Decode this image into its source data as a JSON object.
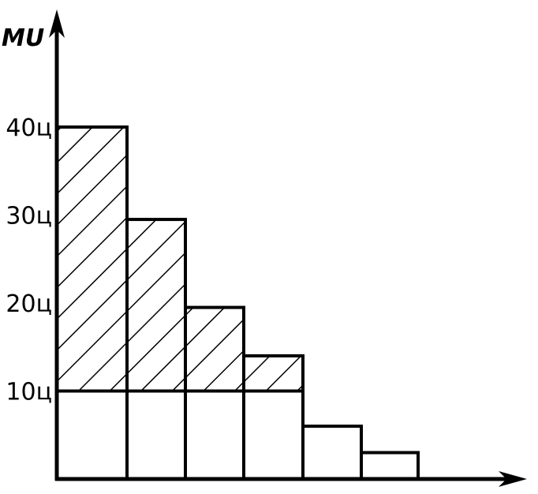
{
  "chart_data": {
    "type": "bar",
    "title": "",
    "xlabel": "",
    "ylabel": "MU",
    "y_tick_labels": [
      {
        "value": 40,
        "label": "40ц"
      },
      {
        "value": 30,
        "label": "30ц"
      },
      {
        "value": 20,
        "label": "20ц"
      },
      {
        "value": 10,
        "label": "10ц"
      }
    ],
    "values": [
      40,
      29.5,
      19.5,
      14,
      6,
      3
    ],
    "baseline_value": 10,
    "ylim": [
      0,
      54
    ],
    "grid": false,
    "legend": false,
    "hatch_style": "diagonal",
    "colors": {
      "stroke": "#000000",
      "fill": "#ffffff"
    }
  }
}
